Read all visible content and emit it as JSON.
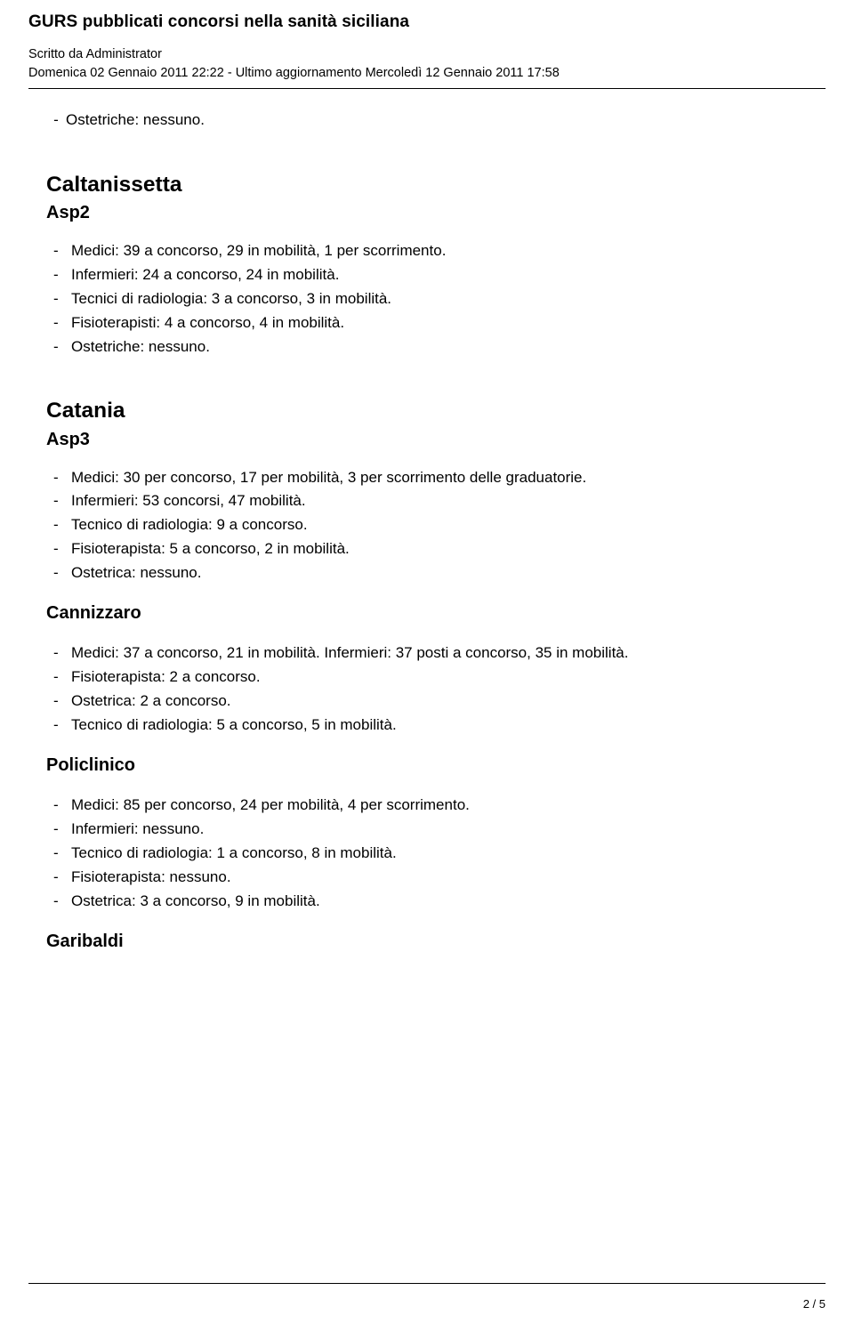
{
  "header": {
    "title": "GURS pubblicati concorsi nella sanità siciliana",
    "author_line": "Scritto da Administrator",
    "date_line": "Domenica 02 Gennaio 2011 22:22 - Ultimo aggiornamento Mercoledì 12 Gennaio 2011 17:58"
  },
  "leading_line": "Ostetriche: nessuno.",
  "sections": [
    {
      "city": "Caltanissetta",
      "asp": "Asp2",
      "items": [
        "Medici: 39 a concorso, 29 in mobilità, 1 per scorrimento.",
        "Infermieri: 24 a concorso, 24 in mobilità.",
        "Tecnici di radiologia: 3 a concorso, 3 in mobilità.",
        "Fisioterapisti: 4 a concorso, 4 in mobilità.",
        "Ostetriche: nessuno."
      ]
    },
    {
      "city": "Catania",
      "asp": "Asp3",
      "items": [
        "Medici: 30 per concorso, 17 per mobilità, 3 per scorrimento delle graduatorie.",
        "Infermieri: 53 concorsi, 47 mobilità.",
        "Tecnico di radiologia: 9 a concorso.",
        "Fisioterapista: 5 a concorso, 2 in mobilità.",
        "Ostetrica: nessuno."
      ],
      "subsections": [
        {
          "name": "Cannizzaro",
          "items": [
            "Medici: 37 a concorso, 21 in mobilità. Infermieri: 37 posti a concorso, 35 in mobilità.",
            "Fisioterapista: 2 a concorso.",
            "Ostetrica: 2 a concorso.",
            "Tecnico di radiologia: 5 a concorso, 5 in mobilità."
          ]
        },
        {
          "name": "Policlinico",
          "items": [
            "Medici: 85 per concorso, 24 per mobilità, 4 per scorrimento.",
            "Infermieri: nessuno.",
            "Tecnico di radiologia: 1 a concorso, 8 in mobilità.",
            "Fisioterapista: nessuno.",
            "Ostetrica: 3 a concorso, 9 in mobilità."
          ]
        },
        {
          "name": "Garibaldi",
          "items": []
        }
      ]
    }
  ],
  "footer": {
    "page_num": "2 / 5"
  }
}
